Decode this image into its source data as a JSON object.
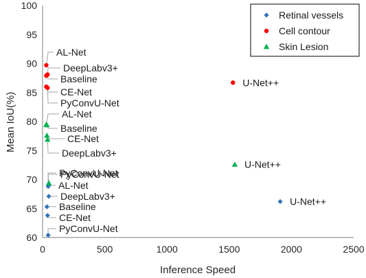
{
  "chart_data": {
    "type": "scatter",
    "xlabel": "Inference Speed",
    "ylabel": "Mean IoU(%)",
    "xlim": [
      0,
      2500
    ],
    "ylim": [
      60,
      100
    ],
    "x_ticks": [
      "0",
      "500",
      "1000",
      "1500",
      "2000",
      "2500"
    ],
    "y_ticks": [
      "60",
      "65",
      "70",
      "75",
      "80",
      "85",
      "90",
      "95",
      "100"
    ],
    "grid": false,
    "legend_position": "top-right",
    "series": [
      {
        "name": "Retinal vessels",
        "color": "#2e75b6",
        "marker": "diamond",
        "points": [
          {
            "label": "PyConvU-Net",
            "x": 45,
            "y": 68.8
          },
          {
            "label": "AL-Net",
            "x": 50,
            "y": 69.0
          },
          {
            "label": "DeepLabv3+",
            "x": 50,
            "y": 67.1
          },
          {
            "label": "Baseline",
            "x": 35,
            "y": 65.3
          },
          {
            "label": "CE-Net",
            "x": 40,
            "y": 63.8
          },
          {
            "label": "PyConvU-Net",
            "x": 45,
            "y": 60.4
          },
          {
            "label": "U-Net++",
            "x": 1910,
            "y": 66.2
          }
        ]
      },
      {
        "name": "Cell contour",
        "color": "#ff0000",
        "marker": "circle",
        "points": [
          {
            "label": "AL-Net",
            "x": 30,
            "y": 89.7
          },
          {
            "label": "DeepLabv3+",
            "x": 40,
            "y": 88.1
          },
          {
            "label": "Baseline",
            "x": 30,
            "y": 87.9
          },
          {
            "label": "CE-Net",
            "x": 30,
            "y": 86.0
          },
          {
            "label": "PyConvU-Net",
            "x": 40,
            "y": 85.8
          },
          {
            "label": "U-Net++",
            "x": 1530,
            "y": 86.7
          }
        ]
      },
      {
        "name": "Skin Lesion",
        "color": "#00b050",
        "marker": "triangle",
        "points": [
          {
            "label": "AL-Net",
            "x": 30,
            "y": 79.5
          },
          {
            "label": "Baseline",
            "x": 35,
            "y": 79.4
          },
          {
            "label": "CE-Net",
            "x": 35,
            "y": 77.6
          },
          {
            "label": "DeepLabv3+",
            "x": 40,
            "y": 76.9
          },
          {
            "label": "PyConvU-Net",
            "x": 50,
            "y": 69.4
          },
          {
            "label": "U-Net++",
            "x": 1545,
            "y": 72.6
          }
        ]
      }
    ]
  }
}
